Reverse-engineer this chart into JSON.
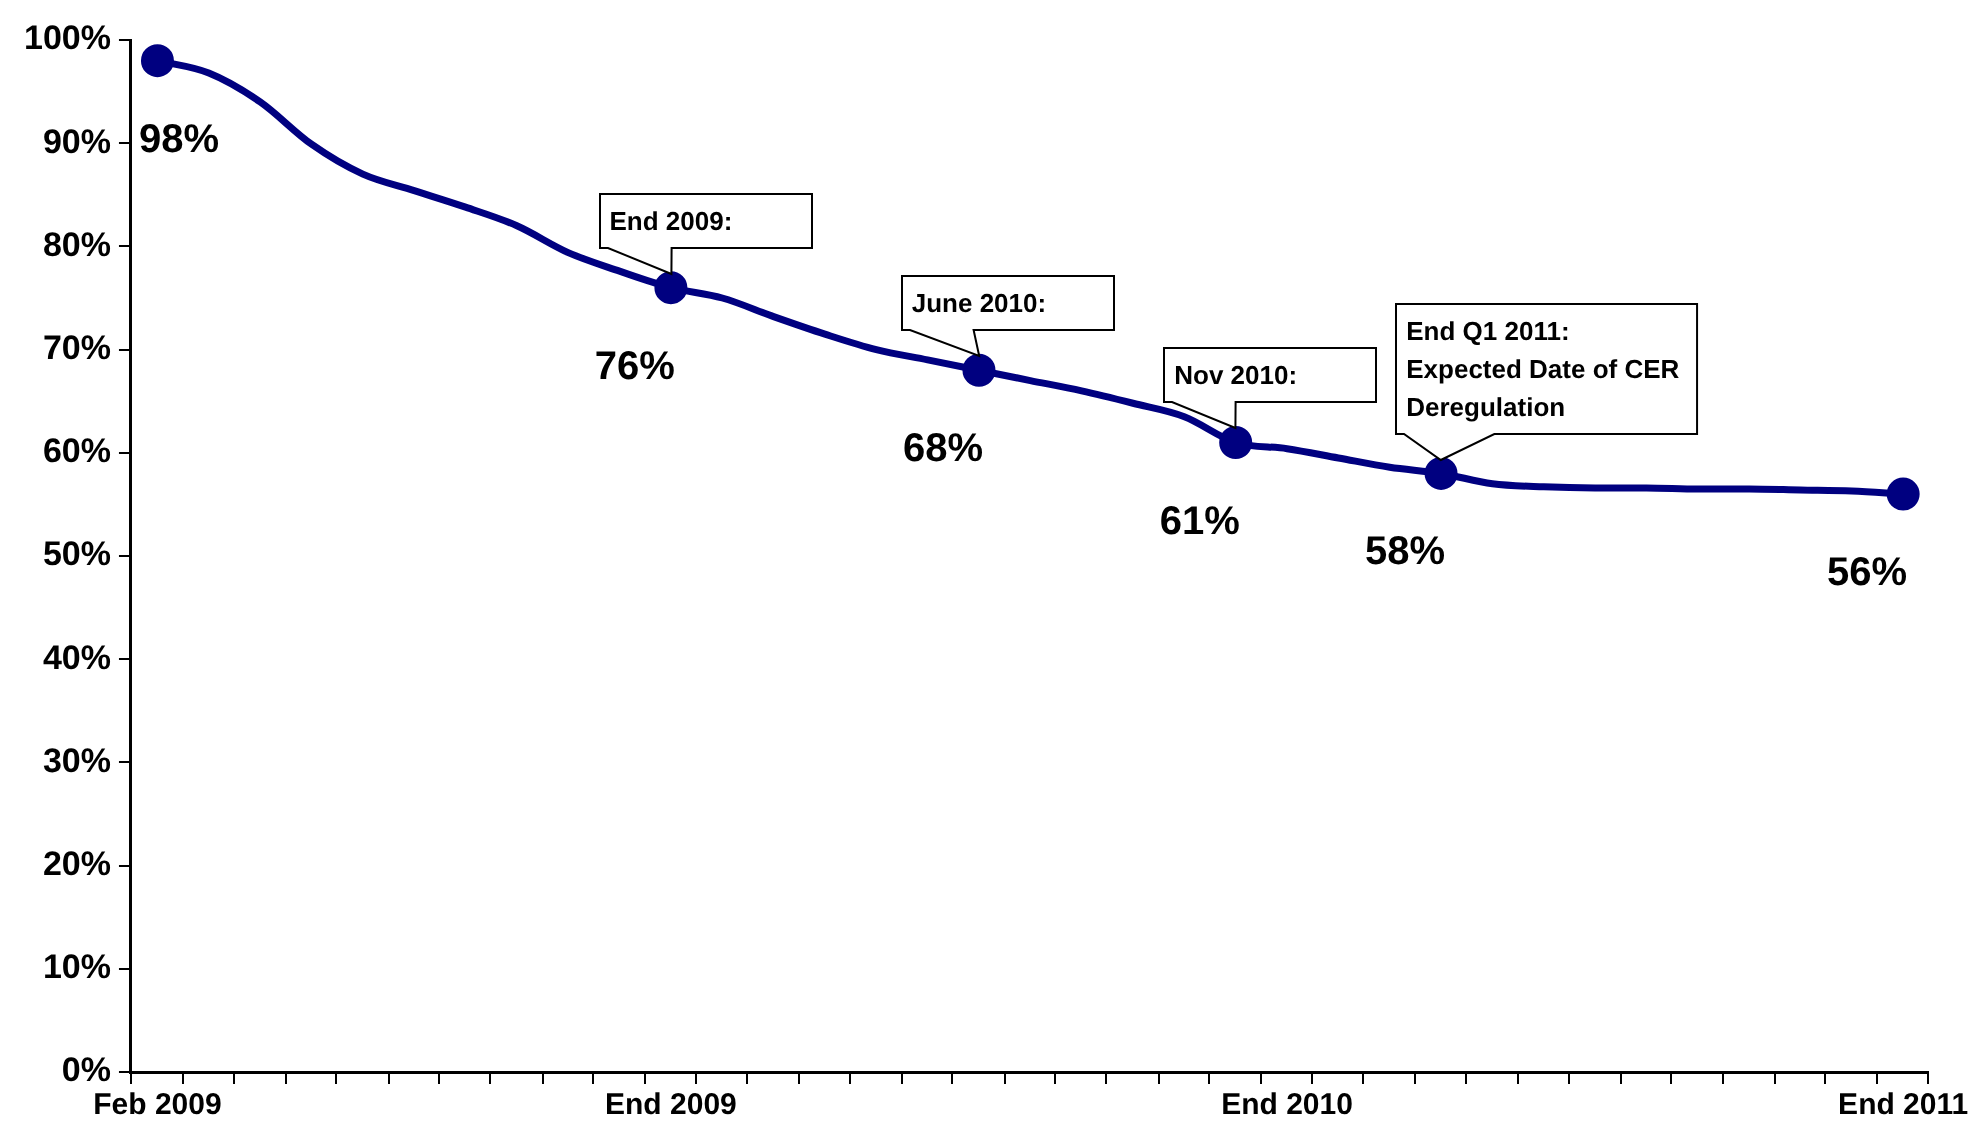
{
  "chart_data": {
    "type": "line",
    "x": [
      "2009-02",
      "2009-03",
      "2009-04",
      "2009-05",
      "2009-06",
      "2009-07",
      "2009-08",
      "2009-09",
      "2009-10",
      "2009-11",
      "2009-12",
      "2010-01",
      "2010-02",
      "2010-03",
      "2010-04",
      "2010-05",
      "2010-06",
      "2010-07",
      "2010-08",
      "2010-09",
      "2010-10",
      "2010-11",
      "2010-12",
      "2011-01",
      "2011-02",
      "2011-03",
      "2011-04",
      "2011-05",
      "2011-06",
      "2011-07",
      "2011-08",
      "2011-09",
      "2011-10",
      "2011-11",
      "2011-12"
    ],
    "series": [
      {
        "color": "#000080",
        "values": [
          98,
          96.8,
          94,
          89.9,
          87,
          85.4,
          83.8,
          82,
          79.4,
          77.6,
          76,
          75,
          73.2,
          71.5,
          70,
          69,
          68,
          67,
          66,
          64.8,
          63.5,
          61,
          60.4,
          59.5,
          58.6,
          58,
          57,
          56.7,
          56.6,
          56.6,
          56.5,
          56.5,
          56.4,
          56.3,
          56
        ],
        "value_labels": [
          "98%",
          null,
          null,
          null,
          null,
          null,
          null,
          null,
          null,
          null,
          "76%",
          null,
          null,
          null,
          null,
          null,
          "68%",
          null,
          null,
          null,
          null,
          "61%",
          null,
          null,
          null,
          "58%",
          null,
          null,
          null,
          null,
          null,
          null,
          null,
          null,
          "56%"
        ]
      }
    ],
    "xlim": [
      "2009-01-16",
      "2011-12-16"
    ],
    "xticks": [
      {
        "value": "2009-02",
        "label": "Feb 2009"
      },
      {
        "value": "2009-12",
        "label": "End 2009"
      },
      {
        "value": "2010-12",
        "label": "End 2010"
      },
      {
        "value": "2011-12",
        "label": "End 2011"
      },
      {
        "value": "2009-01-16",
        "label": null
      },
      {
        "value": "2009-02-15",
        "label": null
      },
      {
        "value": "2009-03-16",
        "label": null
      },
      {
        "value": "2009-04-16",
        "label": null
      },
      {
        "value": "2009-05-16",
        "label": null
      },
      {
        "value": "2009-06-16",
        "label": null
      },
      {
        "value": "2009-07-16",
        "label": null
      },
      {
        "value": "2009-08-16",
        "label": null
      },
      {
        "value": "2009-09-16",
        "label": null
      },
      {
        "value": "2009-10-16",
        "label": null
      },
      {
        "value": "2009-11-16",
        "label": null
      },
      {
        "value": "2009-12-16",
        "label": null
      },
      {
        "value": "2010-01-16",
        "label": null
      },
      {
        "value": "2010-02-15",
        "label": null
      },
      {
        "value": "2010-03-16",
        "label": null
      },
      {
        "value": "2010-04-16",
        "label": null
      },
      {
        "value": "2010-05-16",
        "label": null
      },
      {
        "value": "2010-06-16",
        "label": null
      },
      {
        "value": "2010-07-16",
        "label": null
      },
      {
        "value": "2010-08-16",
        "label": null
      },
      {
        "value": "2010-09-16",
        "label": null
      },
      {
        "value": "2010-10-16",
        "label": null
      },
      {
        "value": "2010-11-16",
        "label": null
      },
      {
        "value": "2010-12-16",
        "label": null
      },
      {
        "value": "2011-01-16",
        "label": null
      },
      {
        "value": "2011-02-15",
        "label": null
      },
      {
        "value": "2011-03-16",
        "label": null
      },
      {
        "value": "2011-04-16",
        "label": null
      },
      {
        "value": "2011-05-16",
        "label": null
      },
      {
        "value": "2011-06-16",
        "label": null
      },
      {
        "value": "2011-07-16",
        "label": null
      },
      {
        "value": "2011-08-16",
        "label": null
      },
      {
        "value": "2011-09-16",
        "label": null
      },
      {
        "value": "2011-10-16",
        "label": null
      },
      {
        "value": "2011-11-16",
        "label": null
      },
      {
        "value": "2011-12-16",
        "label": null
      }
    ],
    "ylim": [
      0,
      100
    ],
    "yticks": [
      {
        "value": 0,
        "label": "0%"
      },
      {
        "value": 10,
        "label": "10%"
      },
      {
        "value": 20,
        "label": "20%"
      },
      {
        "value": 30,
        "label": "30%"
      },
      {
        "value": 40,
        "label": "40%"
      },
      {
        "value": 50,
        "label": "50%"
      },
      {
        "value": 60,
        "label": "60%"
      },
      {
        "value": 70,
        "label": "70%"
      },
      {
        "value": 80,
        "label": "80%"
      },
      {
        "value": 90,
        "label": "90%"
      },
      {
        "value": 100,
        "label": "100%"
      }
    ],
    "grid": false,
    "legend": false,
    "line_style": "solid",
    "annotations": [
      {
        "text": "End 2009:",
        "x": "2009-12",
        "y": 76
      },
      {
        "text": "June 2010:",
        "x": "2010-06",
        "y": 68
      },
      {
        "text": "Nov 2010:",
        "x": "2010-11",
        "y": 61
      },
      {
        "text": "End Q1 2011:\nExpected Date of CER Deregulation",
        "x": "2011-03",
        "y": 58
      }
    ]
  }
}
